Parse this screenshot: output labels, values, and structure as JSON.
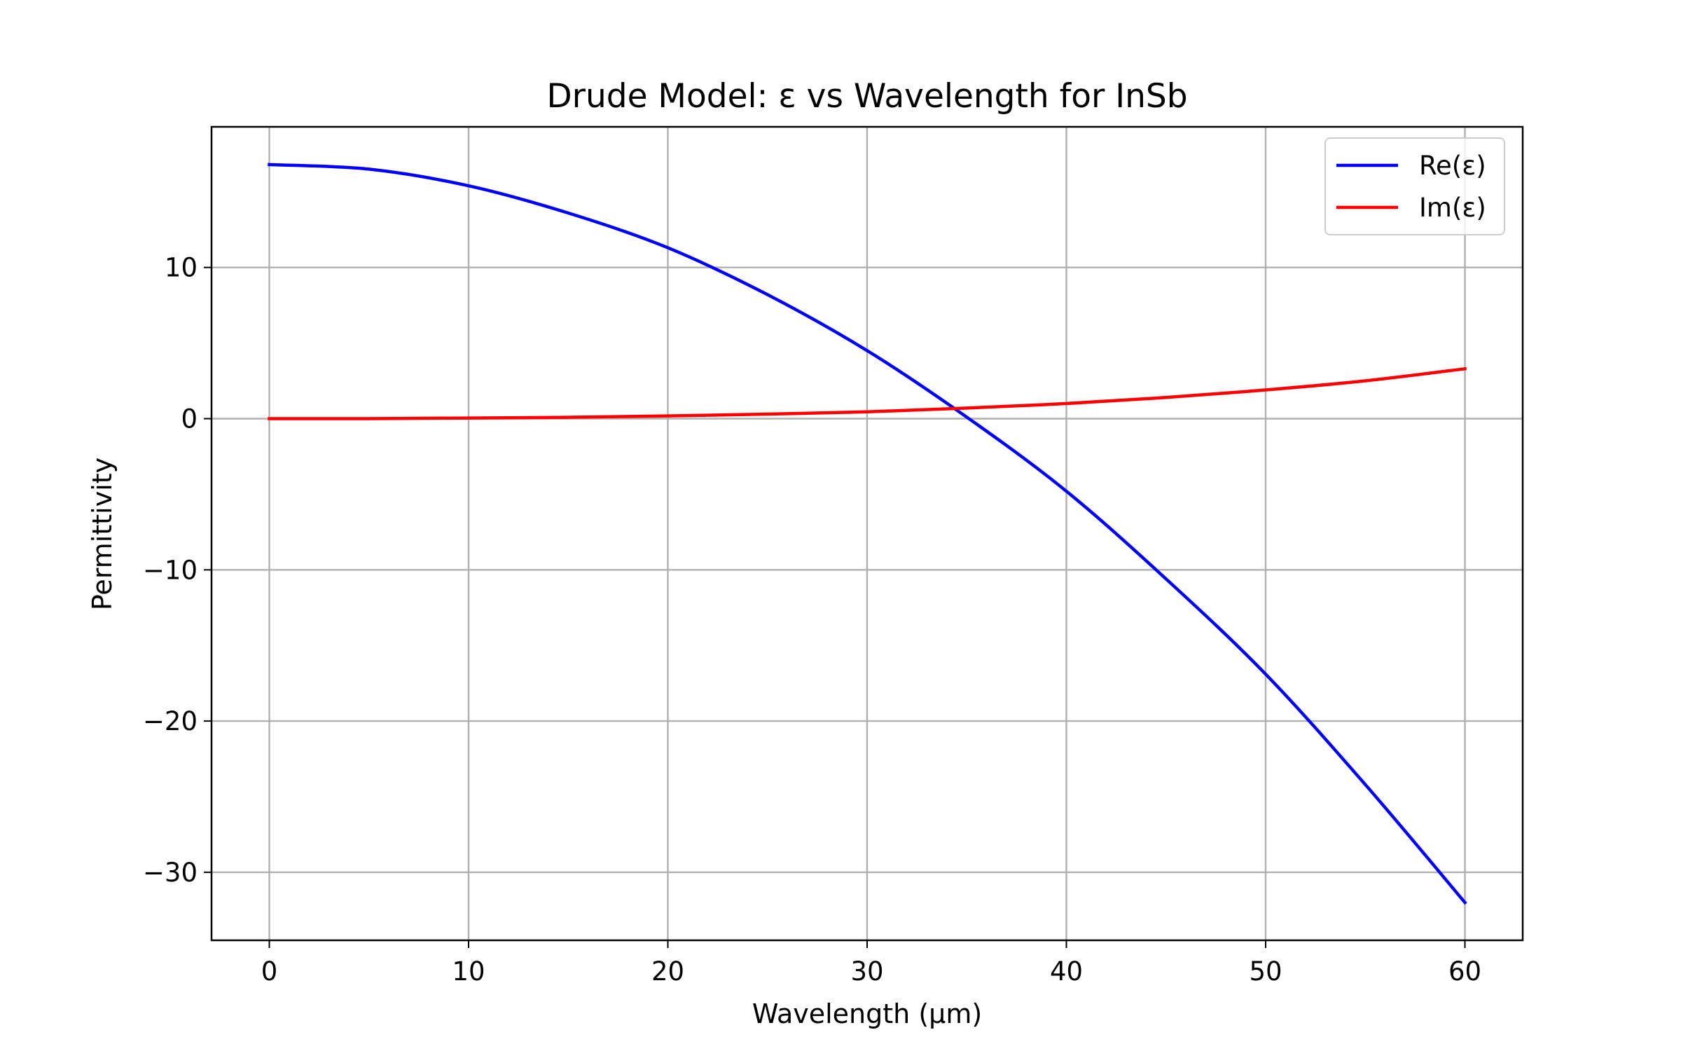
{
  "chart_data": {
    "type": "line",
    "title": "Drude Model: ε vs Wavelength for InSb",
    "xlabel": "Wavelength (μm)",
    "ylabel": "Permittivity",
    "xlim": [
      -2.9,
      62.9
    ],
    "ylim": [
      -34.5,
      19.3
    ],
    "xticks": [
      0,
      10,
      20,
      30,
      40,
      50,
      60
    ],
    "xtick_labels": [
      "0",
      "10",
      "20",
      "30",
      "40",
      "50",
      "60"
    ],
    "yticks": [
      -30,
      -20,
      -10,
      0,
      10
    ],
    "ytick_labels": [
      "−30",
      "−20",
      "−10",
      "0",
      "10"
    ],
    "grid": true,
    "legend_position": "top-right",
    "x": [
      0,
      5,
      10,
      15,
      20,
      25,
      30,
      35,
      40,
      45,
      50,
      55,
      60
    ],
    "series": [
      {
        "name": "Re(ε)",
        "color": "#0000ff",
        "values": [
          16.8,
          16.5,
          15.4,
          13.6,
          11.3,
          8.2,
          4.5,
          0.1,
          -4.8,
          -10.6,
          -16.9,
          -24.2,
          -32.0
        ]
      },
      {
        "name": "Im(ε)",
        "color": "#ff0000",
        "values": [
          0.0,
          0.0,
          0.04,
          0.09,
          0.18,
          0.3,
          0.45,
          0.7,
          1.0,
          1.4,
          1.9,
          2.5,
          3.3
        ]
      }
    ]
  }
}
